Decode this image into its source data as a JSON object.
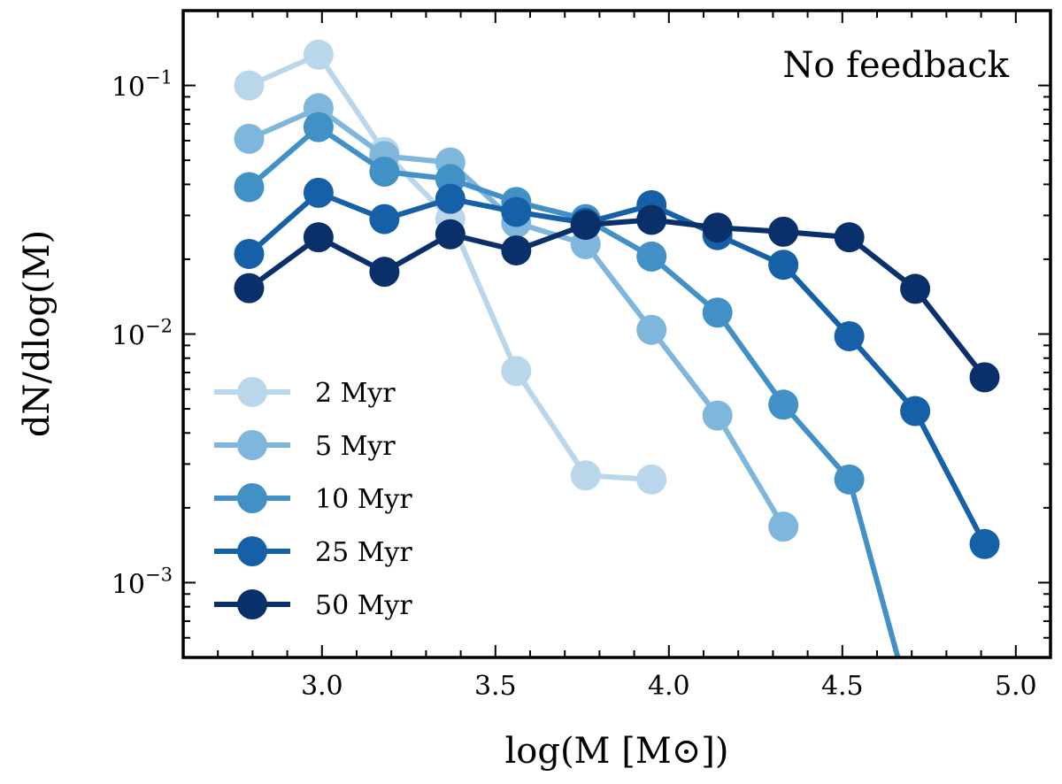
{
  "chart_data": {
    "type": "line",
    "title": "",
    "annotation": "No feedback",
    "xlabel": "log(M [M⊙])",
    "ylabel": "dN/dlog(M)",
    "yscale": "log",
    "xlim": [
      2.6,
      5.1
    ],
    "ylim": [
      0.0005,
      0.2
    ],
    "xticks": [
      3.0,
      3.5,
      4.0,
      4.5,
      5.0
    ],
    "xtick_labels": [
      "3.0",
      "3.5",
      "4.0",
      "4.5",
      "5.0"
    ],
    "yticks": [
      {
        "value": 0.1,
        "base": "10",
        "exp": "−1"
      },
      {
        "value": 0.01,
        "base": "10",
        "exp": "−2"
      },
      {
        "value": 0.001,
        "base": "10",
        "exp": "−3"
      }
    ],
    "legend_location": "lower-left",
    "series": [
      {
        "name": "2 Myr",
        "color": "#bad6eb",
        "x": [
          2.79,
          2.99,
          3.18,
          3.37,
          3.56,
          3.76,
          3.95
        ],
        "y": [
          0.1,
          0.133,
          0.054,
          0.029,
          0.0071,
          0.0027,
          0.0026
        ]
      },
      {
        "name": "5 Myr",
        "color": "#7fb6dc",
        "x": [
          2.79,
          2.99,
          3.18,
          3.37,
          3.56,
          3.76,
          3.95,
          4.14,
          4.33
        ],
        "y": [
          0.061,
          0.081,
          0.052,
          0.049,
          0.028,
          0.023,
          0.0104,
          0.0047,
          0.00168
        ]
      },
      {
        "name": "10 Myr",
        "color": "#4191c6",
        "x": [
          2.79,
          2.99,
          3.18,
          3.37,
          3.56,
          3.76,
          3.95,
          4.14,
          4.33,
          4.52,
          4.66
        ],
        "y": [
          0.039,
          0.068,
          0.045,
          0.042,
          0.034,
          0.029,
          0.0205,
          0.0122,
          0.0052,
          0.0026,
          0.0005
        ]
      },
      {
        "name": "25 Myr",
        "color": "#1660a7",
        "x": [
          2.79,
          2.99,
          3.18,
          3.37,
          3.56,
          3.76,
          3.95,
          4.14,
          4.33,
          4.52,
          4.71,
          4.91
        ],
        "y": [
          0.021,
          0.037,
          0.029,
          0.035,
          0.031,
          0.028,
          0.033,
          0.025,
          0.019,
          0.0098,
          0.0049,
          0.00143
        ]
      },
      {
        "name": "50 Myr",
        "color": "#0a306b",
        "x": [
          2.79,
          2.99,
          3.18,
          3.37,
          3.56,
          3.76,
          3.95,
          4.14,
          4.33,
          4.52,
          4.71,
          4.91
        ],
        "y": [
          0.0153,
          0.0245,
          0.0178,
          0.0252,
          0.0217,
          0.0275,
          0.0288,
          0.0268,
          0.0258,
          0.0245,
          0.0152,
          0.0067
        ]
      }
    ]
  }
}
